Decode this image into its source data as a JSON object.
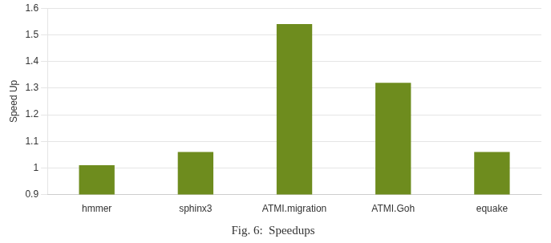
{
  "chart_data": {
    "type": "bar",
    "title": "Fig. 6:  Speedups",
    "ylabel": "Speed Up",
    "categories": [
      "hmmer",
      "sphinx3",
      "ATMI.migration",
      "ATMI.Goh",
      "equake"
    ],
    "values": [
      1.01,
      1.06,
      1.54,
      1.32,
      1.06
    ],
    "color": "#6e8c1e",
    "ylim": [
      0.9,
      1.6
    ],
    "yticks": [
      0.9,
      1,
      1.1,
      1.2,
      1.3,
      1.4,
      1.5,
      1.6
    ],
    "grid": true
  }
}
